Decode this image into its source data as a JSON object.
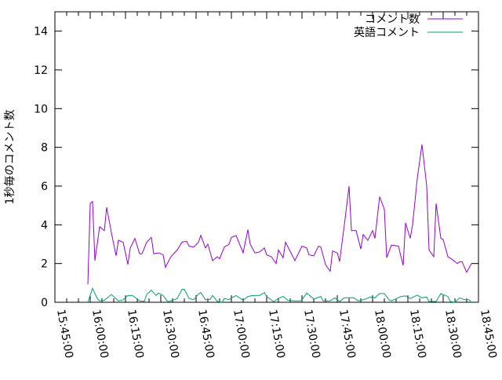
{
  "chart_data": {
    "type": "line",
    "title": "",
    "xlabel": "",
    "ylabel": "1秒毎のコメント数",
    "xlim": [
      "15:45:00",
      "18:45:00"
    ],
    "ylim": [
      0,
      15
    ],
    "xticks": [
      "15:45:00",
      "16:00:00",
      "16:15:00",
      "16:30:00",
      "16:45:00",
      "17:00:00",
      "17:15:00",
      "17:30:00",
      "17:45:00",
      "18:00:00",
      "18:15:00",
      "18:30:00",
      "18:45:00"
    ],
    "yticks": [
      0,
      2,
      4,
      6,
      8,
      10,
      12,
      14
    ],
    "grid": false,
    "legend": "top-right",
    "series": [
      {
        "name": "コメント数",
        "color": "#9400d3",
        "points": [
          [
            "15:59",
            0.93
          ],
          [
            "16:00",
            5.1
          ],
          [
            "16:01",
            5.2
          ],
          [
            "16:02",
            2.15
          ],
          [
            "16:04",
            3.9
          ],
          [
            "16:06",
            3.7
          ],
          [
            "16:07",
            4.9
          ],
          [
            "16:09",
            3.6
          ],
          [
            "16:11",
            2.4
          ],
          [
            "16:12",
            3.2
          ],
          [
            "16:14",
            3.1
          ],
          [
            "16:16",
            1.95
          ],
          [
            "16:17",
            2.8
          ],
          [
            "16:19",
            3.3
          ],
          [
            "16:21",
            2.5
          ],
          [
            "16:22",
            2.5
          ],
          [
            "16:24",
            3.1
          ],
          [
            "16:26",
            3.35
          ],
          [
            "16:27",
            2.5
          ],
          [
            "16:29",
            2.55
          ],
          [
            "16:31",
            2.45
          ],
          [
            "16:32",
            1.8
          ],
          [
            "16:34",
            2.3
          ],
          [
            "16:35",
            2.45
          ],
          [
            "16:37",
            2.7
          ],
          [
            "16:39",
            3.1
          ],
          [
            "16:41",
            3.15
          ],
          [
            "16:42",
            2.9
          ],
          [
            "16:44",
            2.85
          ],
          [
            "16:46",
            3.1
          ],
          [
            "16:47",
            3.45
          ],
          [
            "16:49",
            2.8
          ],
          [
            "16:50",
            3.0
          ],
          [
            "16:52",
            2.15
          ],
          [
            "16:54",
            2.35
          ],
          [
            "16:55",
            2.25
          ],
          [
            "16:57",
            2.85
          ],
          [
            "16:59",
            3.0
          ],
          [
            "17:00",
            3.35
          ],
          [
            "17:02",
            3.45
          ],
          [
            "17:04",
            2.85
          ],
          [
            "17:05",
            2.55
          ],
          [
            "17:07",
            3.75
          ],
          [
            "17:08",
            3.0
          ],
          [
            "17:10",
            2.55
          ],
          [
            "17:12",
            2.6
          ],
          [
            "17:14",
            2.8
          ],
          [
            "17:15",
            2.45
          ],
          [
            "17:17",
            2.35
          ],
          [
            "17:19",
            2.0
          ],
          [
            "17:20",
            2.7
          ],
          [
            "17:22",
            2.3
          ],
          [
            "17:23",
            3.1
          ],
          [
            "17:27",
            2.15
          ],
          [
            "17:30",
            2.9
          ],
          [
            "17:32",
            2.8
          ],
          [
            "17:33",
            2.45
          ],
          [
            "17:35",
            2.4
          ],
          [
            "17:37",
            2.9
          ],
          [
            "17:38",
            2.85
          ],
          [
            "17:40",
            1.95
          ],
          [
            "17:42",
            1.6
          ],
          [
            "17:43",
            2.65
          ],
          [
            "17:45",
            2.55
          ],
          [
            "17:46",
            2.1
          ],
          [
            "17:48",
            4.0
          ],
          [
            "17:50",
            6.0
          ],
          [
            "17:51",
            3.7
          ],
          [
            "17:53",
            3.7
          ],
          [
            "17:55",
            2.75
          ],
          [
            "17:56",
            3.5
          ],
          [
            "17:58",
            3.2
          ],
          [
            "18:00",
            3.7
          ],
          [
            "18:01",
            3.3
          ],
          [
            "18:03",
            5.45
          ],
          [
            "18:05",
            4.8
          ],
          [
            "18:06",
            2.3
          ],
          [
            "18:08",
            2.95
          ],
          [
            "18:11",
            2.9
          ],
          [
            "18:13",
            1.9
          ],
          [
            "18:14",
            4.1
          ],
          [
            "18:16",
            3.3
          ],
          [
            "18:17",
            4.0
          ],
          [
            "18:19",
            6.4
          ],
          [
            "18:21",
            8.15
          ],
          [
            "18:23",
            6.0
          ],
          [
            "18:24",
            2.7
          ],
          [
            "18:26",
            2.35
          ],
          [
            "18:27",
            5.1
          ],
          [
            "18:29",
            3.3
          ],
          [
            "18:30",
            3.25
          ],
          [
            "18:32",
            2.35
          ],
          [
            "18:34",
            2.2
          ],
          [
            "18:36",
            2.0
          ],
          [
            "18:37",
            2.1
          ],
          [
            "18:38",
            2.1
          ],
          [
            "18:40",
            1.55
          ],
          [
            "18:42",
            2.0
          ]
        ]
      },
      {
        "name": "英語コメント",
        "color": "#009e73",
        "points": [
          [
            "15:59",
            0
          ],
          [
            "16:01",
            0.72
          ],
          [
            "16:03",
            0.2
          ],
          [
            "16:04",
            0.07
          ],
          [
            "16:06",
            0.1
          ],
          [
            "16:09",
            0.4
          ],
          [
            "16:12",
            0.07
          ],
          [
            "16:14",
            0.13
          ],
          [
            "16:16",
            0.35
          ],
          [
            "16:18",
            0.35
          ],
          [
            "16:21",
            0.07
          ],
          [
            "16:23",
            0.05
          ],
          [
            "16:24",
            0.4
          ],
          [
            "16:26",
            0.62
          ],
          [
            "16:28",
            0.35
          ],
          [
            "16:29",
            0.47
          ],
          [
            "16:31",
            0.35
          ],
          [
            "16:33",
            0.03
          ],
          [
            "16:35",
            0.1
          ],
          [
            "16:37",
            0.2
          ],
          [
            "16:39",
            0.67
          ],
          [
            "16:40",
            0.67
          ],
          [
            "16:42",
            0.2
          ],
          [
            "16:44",
            0.13
          ],
          [
            "16:46",
            0.43
          ],
          [
            "16:47",
            0.5
          ],
          [
            "16:49",
            0.13
          ],
          [
            "16:51",
            0.16
          ],
          [
            "16:52",
            0.35
          ],
          [
            "16:54",
            0.05
          ],
          [
            "16:56",
            0
          ],
          [
            "16:57",
            0.2
          ],
          [
            "16:59",
            0.13
          ],
          [
            "17:00",
            0.22
          ],
          [
            "17:02",
            0.35
          ],
          [
            "17:05",
            0.1
          ],
          [
            "17:07",
            0.3
          ],
          [
            "17:09",
            0.35
          ],
          [
            "17:12",
            0.35
          ],
          [
            "17:14",
            0.5
          ],
          [
            "17:15",
            0.3
          ],
          [
            "17:18",
            0.03
          ],
          [
            "17:20",
            0.2
          ],
          [
            "17:22",
            0.3
          ],
          [
            "17:24",
            0.1
          ],
          [
            "17:27",
            0.07
          ],
          [
            "17:29",
            0.07
          ],
          [
            "17:30",
            0.13
          ],
          [
            "17:32",
            0.47
          ],
          [
            "17:35",
            0.17
          ],
          [
            "17:38",
            0.3
          ],
          [
            "17:39",
            0.07
          ],
          [
            "17:42",
            0.07
          ],
          [
            "17:44",
            0.23
          ],
          [
            "17:46",
            0.04
          ],
          [
            "17:48",
            0.23
          ],
          [
            "17:52",
            0.23
          ],
          [
            "17:54",
            0.07
          ],
          [
            "17:57",
            0.17
          ],
          [
            "17:59",
            0.27
          ],
          [
            "18:01",
            0.23
          ],
          [
            "18:03",
            0.45
          ],
          [
            "18:05",
            0.45
          ],
          [
            "18:07",
            0.13
          ],
          [
            "18:08",
            0.07
          ],
          [
            "18:12",
            0.3
          ],
          [
            "18:14",
            0.33
          ],
          [
            "18:16",
            0.2
          ],
          [
            "18:19",
            0.37
          ],
          [
            "18:21",
            0.23
          ],
          [
            "18:23",
            0.27
          ],
          [
            "18:24",
            0.04
          ],
          [
            "18:27",
            0.04
          ],
          [
            "18:29",
            0.45
          ],
          [
            "18:32",
            0.3
          ],
          [
            "18:33",
            0.04
          ],
          [
            "18:35",
            0
          ],
          [
            "18:37",
            0.23
          ],
          [
            "18:39",
            0.13
          ],
          [
            "18:41",
            0.13
          ],
          [
            "18:42",
            0
          ]
        ]
      }
    ]
  }
}
